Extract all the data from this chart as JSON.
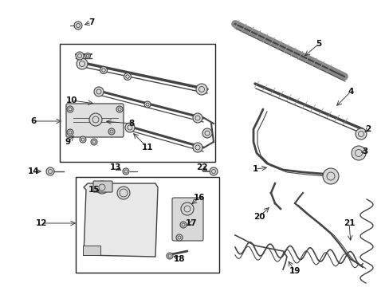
{
  "bg_color": "#ffffff",
  "line_color": "#444444",
  "label_color": "#111111",
  "box_color": "#222222"
}
